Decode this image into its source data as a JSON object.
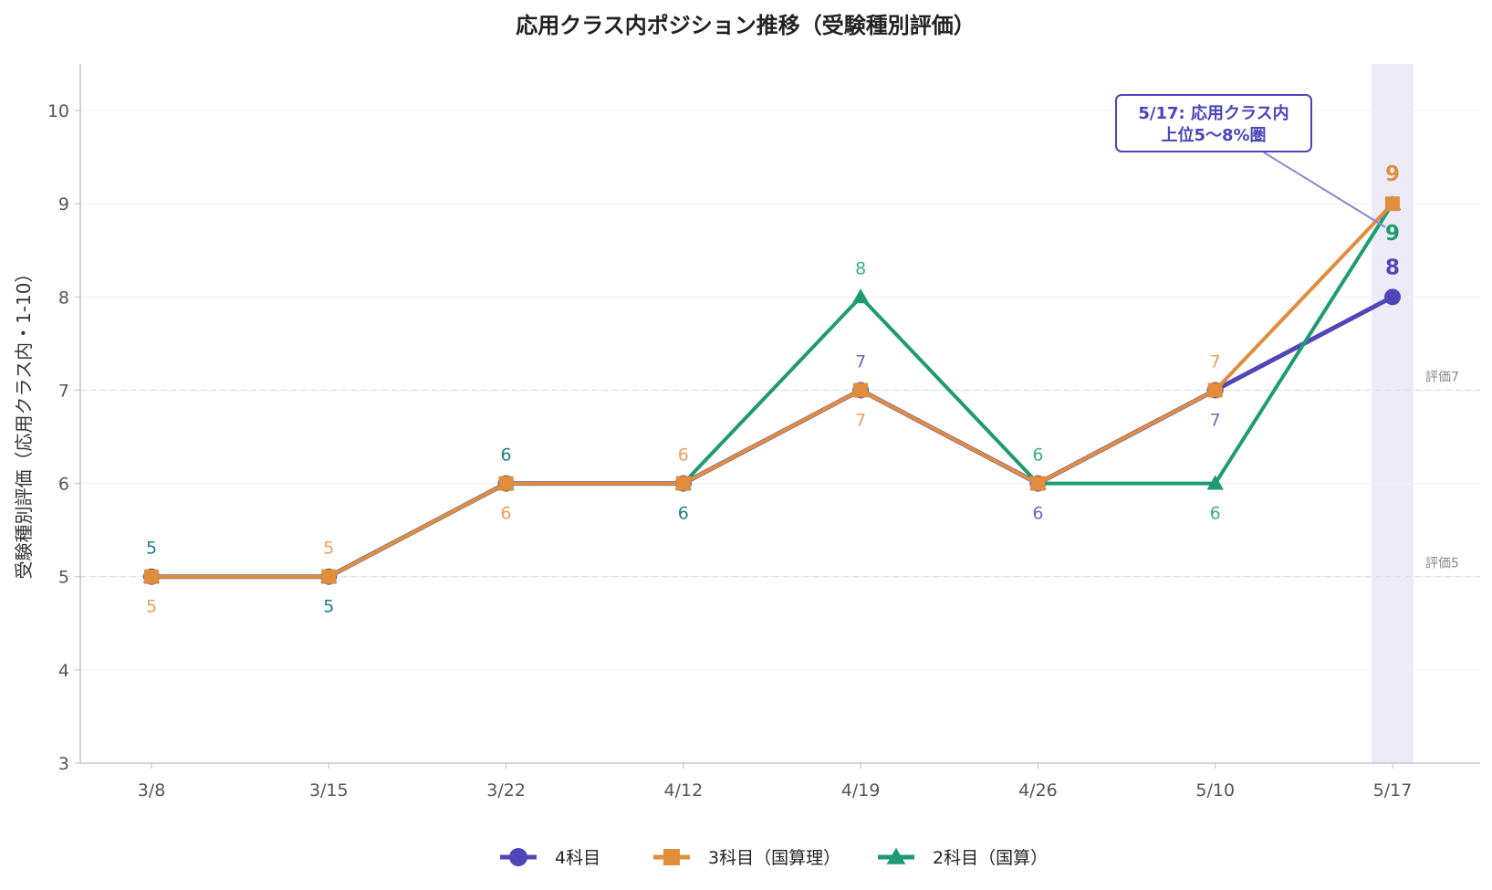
{
  "chart_data": {
    "type": "line",
    "title": "応用クラス内ポジション推移（受験種別評価）",
    "xlabel": "",
    "ylabel": "受験種別評価（応用クラス内・1-10）",
    "categories": [
      "3/8",
      "3/15",
      "3/22",
      "4/12",
      "4/19",
      "4/26",
      "5/10",
      "5/17"
    ],
    "ylim": [
      3,
      10.5
    ],
    "yticks": [
      "3",
      "4",
      "5",
      "6",
      "7",
      "8",
      "9",
      "10"
    ],
    "grid": true,
    "legend_position": "bottom",
    "series": [
      {
        "name": "4科目",
        "values": [
          5,
          5,
          6,
          6,
          7,
          6,
          7,
          8
        ],
        "color": "#5046B8",
        "marker": "circle"
      },
      {
        "name": "3科目（国算理）",
        "values": [
          5,
          5,
          6,
          6,
          7,
          6,
          7,
          9
        ],
        "color": "#E08D3C",
        "marker": "square"
      },
      {
        "name": "2科目（国算）",
        "values": [
          5,
          5,
          6,
          6,
          8,
          6,
          6,
          9
        ],
        "color": "#1E9B72",
        "marker": "triangle"
      }
    ],
    "reference_lines": [
      {
        "value": 7,
        "label": "評価7"
      },
      {
        "value": 5,
        "label": "評価5"
      }
    ],
    "highlight_category": "5/17",
    "highlight_color": "#EDEBF8",
    "annotation": {
      "lines": [
        "5/17: 応用クラス内",
        "上位5〜8%圏"
      ],
      "target_category": "5/17",
      "target_value": 8.75,
      "color": "#4B45B8"
    },
    "point_labels": [
      {
        "cat": 0,
        "text": "5",
        "offset": -1,
        "color": "#1A7F84",
        "big": false
      },
      {
        "cat": 0,
        "text": "5",
        "offset": 1,
        "color": "#E8A060",
        "big": false
      },
      {
        "cat": 1,
        "text": "5",
        "offset": -1,
        "color": "#E8A060",
        "big": false
      },
      {
        "cat": 1,
        "text": "5",
        "offset": 1,
        "color": "#1A7F84",
        "big": false
      },
      {
        "cat": 2,
        "text": "6",
        "offset": -1,
        "color": "#1A7F84",
        "big": false
      },
      {
        "cat": 2,
        "text": "6",
        "offset": 1,
        "color": "#E8A060",
        "big": false
      },
      {
        "cat": 3,
        "text": "6",
        "offset": -1,
        "color": "#E8A060",
        "big": false
      },
      {
        "cat": 3,
        "text": "6",
        "offset": 1,
        "color": "#1A7F84",
        "big": false
      },
      {
        "cat": 4,
        "value": 8,
        "text": "8",
        "offset": -1,
        "color": "#3BAE86",
        "big": false
      },
      {
        "cat": 4,
        "value": 7,
        "text": "7",
        "offset": -1,
        "color": "#6E68C6",
        "big": false
      },
      {
        "cat": 4,
        "value": 7,
        "text": "7",
        "offset": 1,
        "color": "#E8A060",
        "big": false
      },
      {
        "cat": 5,
        "text": "6",
        "offset": -1,
        "color": "#3BAE86",
        "big": false
      },
      {
        "cat": 5,
        "text": "6",
        "offset": 1,
        "color": "#6E68C6",
        "big": false
      },
      {
        "cat": 6,
        "value": 7,
        "text": "7",
        "offset": -1,
        "color": "#E8A060",
        "big": false
      },
      {
        "cat": 6,
        "value": 7,
        "text": "7",
        "offset": 1,
        "color": "#6E68C6",
        "big": false
      },
      {
        "cat": 6,
        "value": 6,
        "text": "6",
        "offset": 1,
        "color": "#3BAE86",
        "big": false
      },
      {
        "cat": 7,
        "value": 9,
        "text": "9",
        "offset": -1,
        "color": "#E08D3C",
        "big": true
      },
      {
        "cat": 7,
        "value": 9,
        "text": "9",
        "offset": 1,
        "color": "#1E9B72",
        "big": true
      },
      {
        "cat": 7,
        "value": 8,
        "text": "8",
        "offset": -1,
        "color": "#5046B8",
        "big": true
      }
    ]
  }
}
